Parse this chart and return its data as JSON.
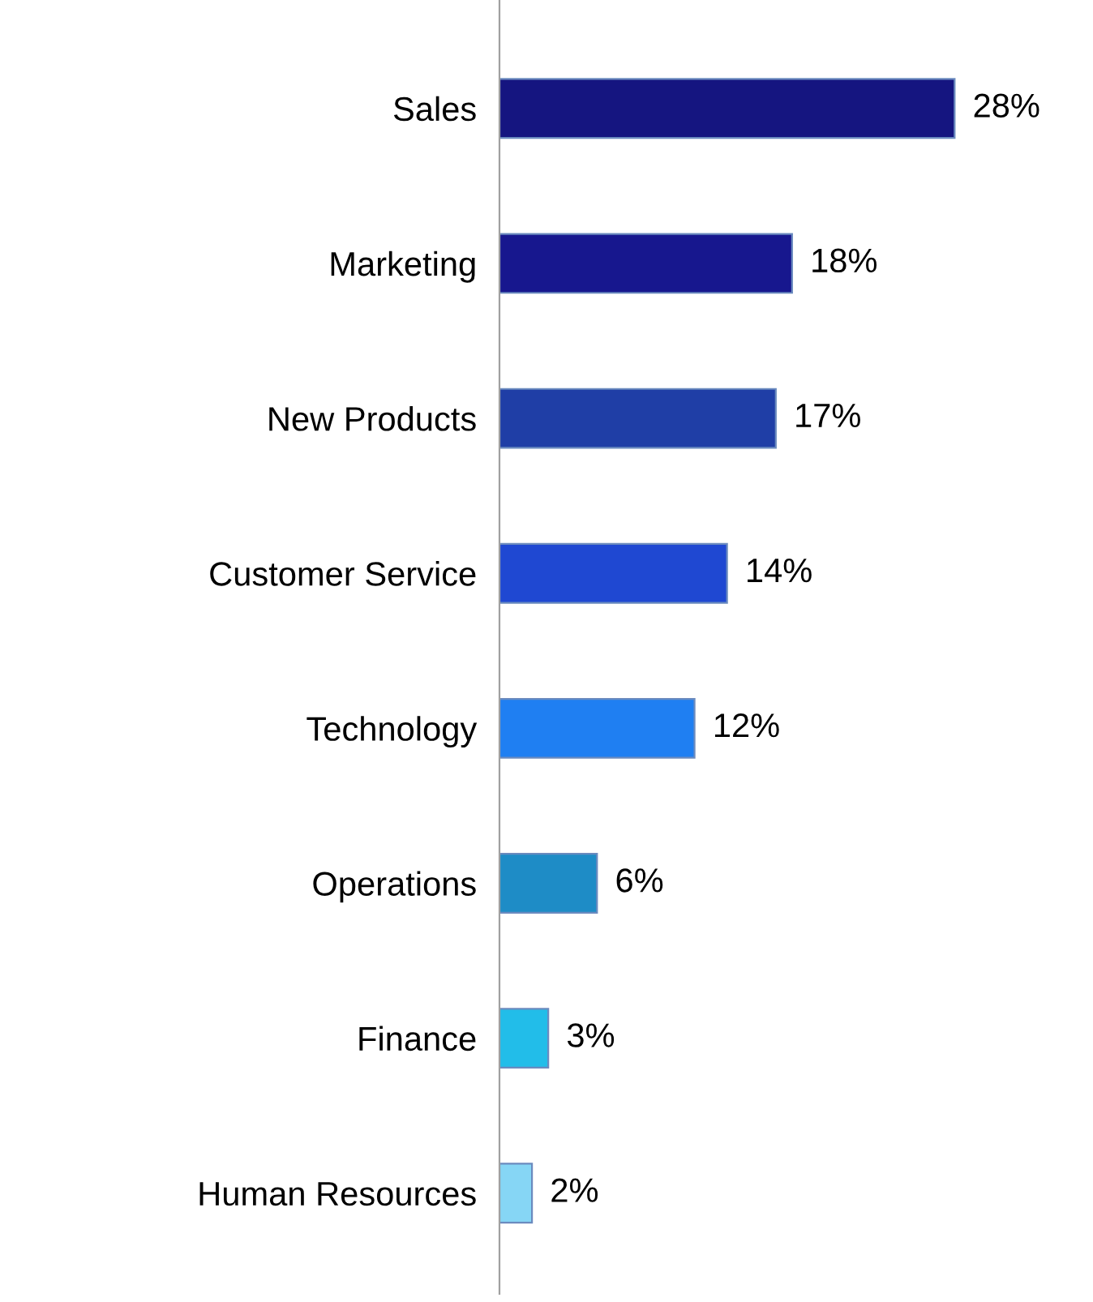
{
  "chart_data": {
    "type": "bar",
    "orientation": "horizontal",
    "categories": [
      "Sales",
      "Marketing",
      "New Products",
      "Customer Service",
      "Technology",
      "Operations",
      "Finance",
      "Human Resources"
    ],
    "values": [
      28,
      18,
      17,
      14,
      12,
      6,
      3,
      2
    ],
    "colors": [
      "#151580",
      "#17178e",
      "#1f3ea6",
      "#1f48d2",
      "#1f7ff2",
      "#1e8cc6",
      "#22bde9",
      "#86d6f5"
    ],
    "value_labels": [
      "28%",
      "18%",
      "17%",
      "14%",
      "12%",
      "6%",
      "3%",
      "2%"
    ],
    "grid": false,
    "legend": false,
    "tick_labels": "y"
  }
}
